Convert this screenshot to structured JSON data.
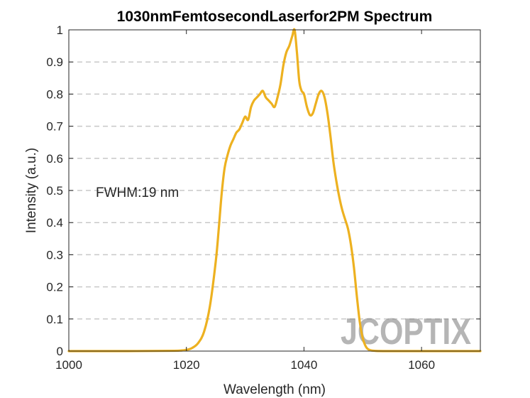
{
  "chart_data": {
    "type": "line",
    "title": "1030nmFemtosecondLaserfor2PM Spectrum",
    "xlabel": "Wavelength (nm)",
    "ylabel": "Intensity (a.u.)",
    "xlim": [
      1000,
      1070
    ],
    "ylim": [
      0,
      1
    ],
    "xticks": [
      1000,
      1020,
      1040,
      1060
    ],
    "xtick_labels": [
      "1000",
      "1020",
      "1040",
      "1060"
    ],
    "yticks": [
      0,
      0.1,
      0.2,
      0.3,
      0.4,
      0.5,
      0.6,
      0.7,
      0.8,
      0.9,
      1
    ],
    "ytick_labels": [
      "0",
      "0.1",
      "0.2",
      "0.3",
      "0.4",
      "0.5",
      "0.6",
      "0.7",
      "0.8",
      "0.9",
      "1"
    ],
    "grid": "y-dashed",
    "annotation": "FWHM:19 nm",
    "series": [
      {
        "color": "#EDB120",
        "x": [
          1000,
          1010,
          1018,
          1020,
          1021,
          1022,
          1023,
          1024,
          1025,
          1025.5,
          1026,
          1026.5,
          1027,
          1027.5,
          1028,
          1028.5,
          1029,
          1029.5,
          1030,
          1030.5,
          1031,
          1031.5,
          1032,
          1032.5,
          1033,
          1033.5,
          1034,
          1034.5,
          1035,
          1035.5,
          1036,
          1036.5,
          1037,
          1037.5,
          1038,
          1038.4,
          1038.8,
          1039.2,
          1039.6,
          1040,
          1040.5,
          1041,
          1041.5,
          1042,
          1042.5,
          1043,
          1043.5,
          1044,
          1044.5,
          1045,
          1045.5,
          1046,
          1046.5,
          1047,
          1047.5,
          1048,
          1048.5,
          1049,
          1049.5,
          1050,
          1050.5,
          1051,
          1052,
          1055,
          1070
        ],
        "y": [
          0,
          0,
          0.001,
          0.004,
          0.01,
          0.025,
          0.06,
          0.14,
          0.28,
          0.38,
          0.49,
          0.57,
          0.61,
          0.64,
          0.66,
          0.68,
          0.69,
          0.71,
          0.73,
          0.72,
          0.76,
          0.78,
          0.79,
          0.8,
          0.81,
          0.79,
          0.78,
          0.77,
          0.76,
          0.79,
          0.83,
          0.89,
          0.93,
          0.95,
          0.98,
          1.0,
          0.93,
          0.84,
          0.81,
          0.8,
          0.76,
          0.735,
          0.74,
          0.77,
          0.8,
          0.81,
          0.79,
          0.74,
          0.67,
          0.59,
          0.53,
          0.48,
          0.44,
          0.41,
          0.38,
          0.33,
          0.26,
          0.17,
          0.09,
          0.04,
          0.015,
          0.005,
          0.001,
          0,
          0
        ]
      }
    ]
  },
  "watermark": "JCOPTIX"
}
